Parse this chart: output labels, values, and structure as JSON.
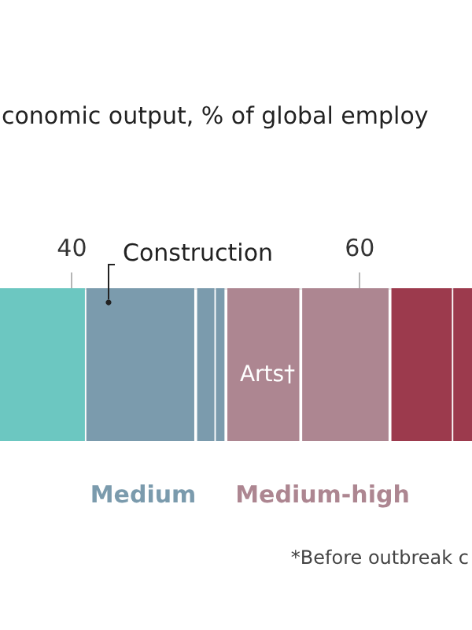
{
  "chart_data": {
    "type": "bar",
    "orientation": "horizontal",
    "title": "conomic output, % of global employ",
    "categories": [
      null
    ],
    "xlim": [
      35,
      67.8
    ],
    "xticks": [
      40,
      60
    ],
    "series": [
      {
        "color": "#6cc7c1",
        "base": [
          35
        ],
        "values": [
          5.9
        ]
      },
      {
        "color": "#7b9bad",
        "base": [
          41.0
        ],
        "values": [
          7.5
        ]
      },
      {
        "color": "#7b9bad",
        "base": [
          48.7
        ],
        "values": [
          1.2
        ]
      },
      {
        "color": "#7b9bad",
        "base": [
          50.0
        ],
        "values": [
          0.6
        ]
      },
      {
        "color": "#ad8691",
        "base": [
          50.8
        ],
        "values": [
          5.0
        ]
      },
      {
        "color": "#ad8691",
        "base": [
          56.0
        ],
        "values": [
          6.0
        ]
      },
      {
        "color": "#9c3a4d",
        "base": [
          62.2
        ],
        "values": [
          4.2
        ]
      },
      {
        "color": "#9c3a4d",
        "base": [
          66.5
        ],
        "values": [
          1.3
        ]
      }
    ],
    "annotations": [
      "Construction",
      "Arts†",
      "Medium",
      "Medium-high",
      "*Before outbreak c"
    ]
  }
}
